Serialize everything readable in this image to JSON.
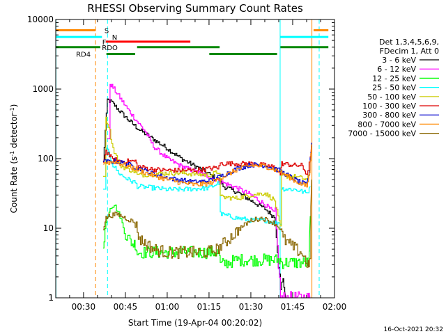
{
  "chart_data": {
    "type": "line",
    "title": "RHESSI Observing Summary Count Rates",
    "xlabel": "Start Time (19-Apr-04 00:20:02)",
    "ylabel_parts": [
      "Count Rate (s",
      "-1",
      " detector",
      "-1",
      ")"
    ],
    "x_unit": "minutes of day (00:00 = 0)",
    "xlim": [
      20.03,
      120
    ],
    "ylim": [
      1,
      10000
    ],
    "y_scale": "log",
    "x_ticks": [
      {
        "value": 30,
        "label": "00:30"
      },
      {
        "value": 45,
        "label": "00:45"
      },
      {
        "value": 60,
        "label": "01:00"
      },
      {
        "value": 75,
        "label": "01:15"
      },
      {
        "value": 90,
        "label": "01:30"
      },
      {
        "value": 105,
        "label": "01:45"
      },
      {
        "value": 120,
        "label": "02:00"
      }
    ],
    "y_ticks": [
      {
        "value": 1,
        "label": "1"
      },
      {
        "value": 10,
        "label": "10"
      },
      {
        "value": 100,
        "label": "100"
      },
      {
        "value": 1000,
        "label": "1000"
      },
      {
        "value": 10000,
        "label": "10000"
      }
    ],
    "legend_header": [
      "Det 1,3,4,5,6,9,",
      "FDecim 1, Att 0"
    ],
    "legend_position": "right",
    "timestamp": "16-Oct-2021 20:32",
    "vertical_lines": [
      {
        "x": 20.1,
        "color": "#00ffff",
        "dash": false
      },
      {
        "x": 34.3,
        "color": "#ff8800",
        "dash": true
      },
      {
        "x": 38.6,
        "color": "#00ffff",
        "dash": true
      },
      {
        "x": 100.5,
        "color": "#00ffff",
        "dash": false
      },
      {
        "x": 111.9,
        "color": "#ff8800",
        "dash": false
      },
      {
        "x": 114.5,
        "color": "#00ffff",
        "dash": true
      }
    ],
    "flag_bars": [
      {
        "label": "S",
        "color": "#ff8800",
        "y": 7000,
        "segments": [
          [
            20.1,
            34.3
          ],
          [
            112.5,
            117.8
          ]
        ],
        "label_x": 37.5
      },
      {
        "label": "N",
        "color": "#00ffff",
        "y": 5600,
        "segments": [
          [
            20.1,
            36.6
          ],
          [
            100.5,
            117.8
          ]
        ],
        "label_x": 40.2
      },
      {
        "label": "F",
        "color": "#ff0000",
        "y": 4800,
        "segments": [
          [
            38.0,
            68.3
          ]
        ],
        "label_x": 36.7
      },
      {
        "label": "RDO",
        "color": "#008800",
        "y": 4000,
        "segments": [
          [
            20.1,
            36.0
          ],
          [
            49.2,
            78.8
          ],
          [
            100.6,
            117.8
          ]
        ],
        "label_x": 36.6
      },
      {
        "label": "RD4",
        "color": "#008800",
        "y": 3200,
        "segments": [
          [
            38.2,
            48.5
          ],
          [
            75.1,
            99.4
          ]
        ],
        "label_x": 27.3
      }
    ],
    "series": [
      {
        "name": "3 - 6 keV",
        "color": "#000000",
        "x": [
          37.0,
          38.5,
          40.0,
          43,
          46,
          50,
          55,
          60,
          65,
          70,
          75,
          79,
          80,
          85,
          90,
          95,
          98.7,
          100.6,
          101.5,
          102.5
        ],
        "y": [
          90,
          700,
          650,
          480,
          360,
          260,
          190,
          140,
          100,
          78,
          60,
          48,
          40,
          33,
          25,
          19,
          14,
          1.2,
          2.0,
          1.0
        ]
      },
      {
        "name": "6 - 12 keV",
        "color": "#ff00ff",
        "x": [
          38.5,
          39.5,
          40.5,
          43,
          46,
          50,
          52,
          55,
          60,
          65,
          70,
          75,
          80,
          85,
          90,
          95,
          98.7,
          100.6,
          107,
          110.5,
          111.0,
          111.3
        ],
        "y": [
          180,
          1200,
          1050,
          750,
          500,
          310,
          250,
          150,
          100,
          78,
          65,
          55,
          45,
          38,
          30,
          22,
          16,
          1.0,
          1.0,
          1.0,
          1.0,
          1.0
        ]
      },
      {
        "name": "12 - 25 keV",
        "color": "#00ff00",
        "x": [
          37.0,
          38.0,
          39.5,
          41.0,
          43.0,
          45,
          47.5,
          48.5,
          49.2,
          55,
          60,
          65,
          70,
          75,
          78.5,
          79,
          85,
          90,
          95,
          100.5,
          101.0,
          106,
          110.8,
          111.0,
          111.3
        ],
        "y": [
          6,
          12,
          20,
          22,
          15,
          8,
          6,
          6,
          4.5,
          4.5,
          4.5,
          4.5,
          4.5,
          4.5,
          4.5,
          3.0,
          3.5,
          3.5,
          3.5,
          3.5,
          3.2,
          3.2,
          3.2,
          6,
          15
        ]
      },
      {
        "name": "25 - 50 keV",
        "color": "#00ffff",
        "x": [
          37.0,
          38.0,
          39.0,
          40.5,
          43,
          46,
          48.5,
          49.2,
          55,
          60,
          65,
          70,
          75,
          78.5,
          79.0,
          85,
          90,
          95,
          98.5,
          100.5,
          101.0,
          106,
          110,
          111.3
        ],
        "y": [
          35,
          140,
          120,
          80,
          60,
          50,
          45,
          40,
          38,
          36,
          36,
          37,
          38,
          45,
          16,
          14,
          13,
          13,
          12,
          12,
          37,
          36,
          32,
          40
        ]
      },
      {
        "name": "50 - 100 keV",
        "color": "#cccc00",
        "x": [
          37.0,
          38.0,
          39.0,
          40.5,
          43,
          46,
          48.5,
          49.2,
          55,
          60,
          65,
          70,
          75,
          78.5,
          79.0,
          85,
          90,
          95,
          98.5,
          100.5,
          101.0,
          106,
          110,
          111.3
        ],
        "y": [
          60,
          370,
          300,
          140,
          80,
          70,
          65,
          58,
          60,
          62,
          62,
          60,
          58,
          65,
          28,
          27,
          30,
          32,
          25,
          10,
          57,
          55,
          50,
          60
        ]
      },
      {
        "name": "100 - 300 keV",
        "color": "#dd0000",
        "x": [
          37.0,
          38.0,
          40,
          43,
          48.5,
          49.2,
          55,
          60,
          65,
          70,
          75,
          78.5,
          79.0,
          85,
          90,
          95,
          98.5,
          100.5,
          101.0,
          106,
          108,
          110,
          111.3,
          111.7
        ],
        "y": [
          90,
          130,
          100,
          92,
          92,
          78,
          70,
          68,
          68,
          68,
          72,
          75,
          85,
          85,
          85,
          80,
          75,
          60,
          85,
          80,
          80,
          60,
          100,
          150
        ]
      },
      {
        "name": "300 - 800 keV",
        "color": "#0000cc",
        "x": [
          37.0,
          39,
          41,
          45,
          50,
          55,
          60,
          65,
          70,
          75,
          80,
          85,
          90,
          95,
          100,
          105,
          108,
          110,
          111.0,
          111.5,
          111.8
        ],
        "y": [
          90,
          90,
          92,
          85,
          72,
          60,
          53,
          49,
          46,
          48,
          58,
          72,
          82,
          80,
          68,
          52,
          45,
          42,
          70,
          130,
          170
        ]
      },
      {
        "name": "800 - 7000 keV",
        "color": "#ff8800",
        "x": [
          37.0,
          39,
          41,
          45,
          50,
          55,
          60,
          65,
          70,
          75,
          80,
          85,
          90,
          95,
          100,
          105,
          108,
          110,
          111.0,
          111.5,
          111.8
        ],
        "y": [
          88,
          88,
          90,
          80,
          68,
          57,
          50,
          45,
          42,
          44,
          55,
          70,
          80,
          78,
          66,
          50,
          43,
          40,
          65,
          120,
          160
        ]
      },
      {
        "name": "7000 - 15000 keV",
        "color": "#886600",
        "x": [
          37.0,
          38.0,
          39,
          42,
          45,
          48.5,
          50,
          55,
          60,
          65,
          70,
          74,
          78,
          82,
          86,
          90,
          94,
          98,
          100.5,
          101.5,
          106,
          108,
          110.5,
          111.0,
          111.5,
          111.8
        ],
        "y": [
          10,
          14,
          15,
          16,
          14,
          12,
          7,
          5,
          4.5,
          4.5,
          4.5,
          4.5,
          5,
          7,
          10,
          13,
          14,
          12,
          10,
          7,
          5,
          4.5,
          3.0,
          3.0,
          20,
          50
        ]
      }
    ]
  }
}
